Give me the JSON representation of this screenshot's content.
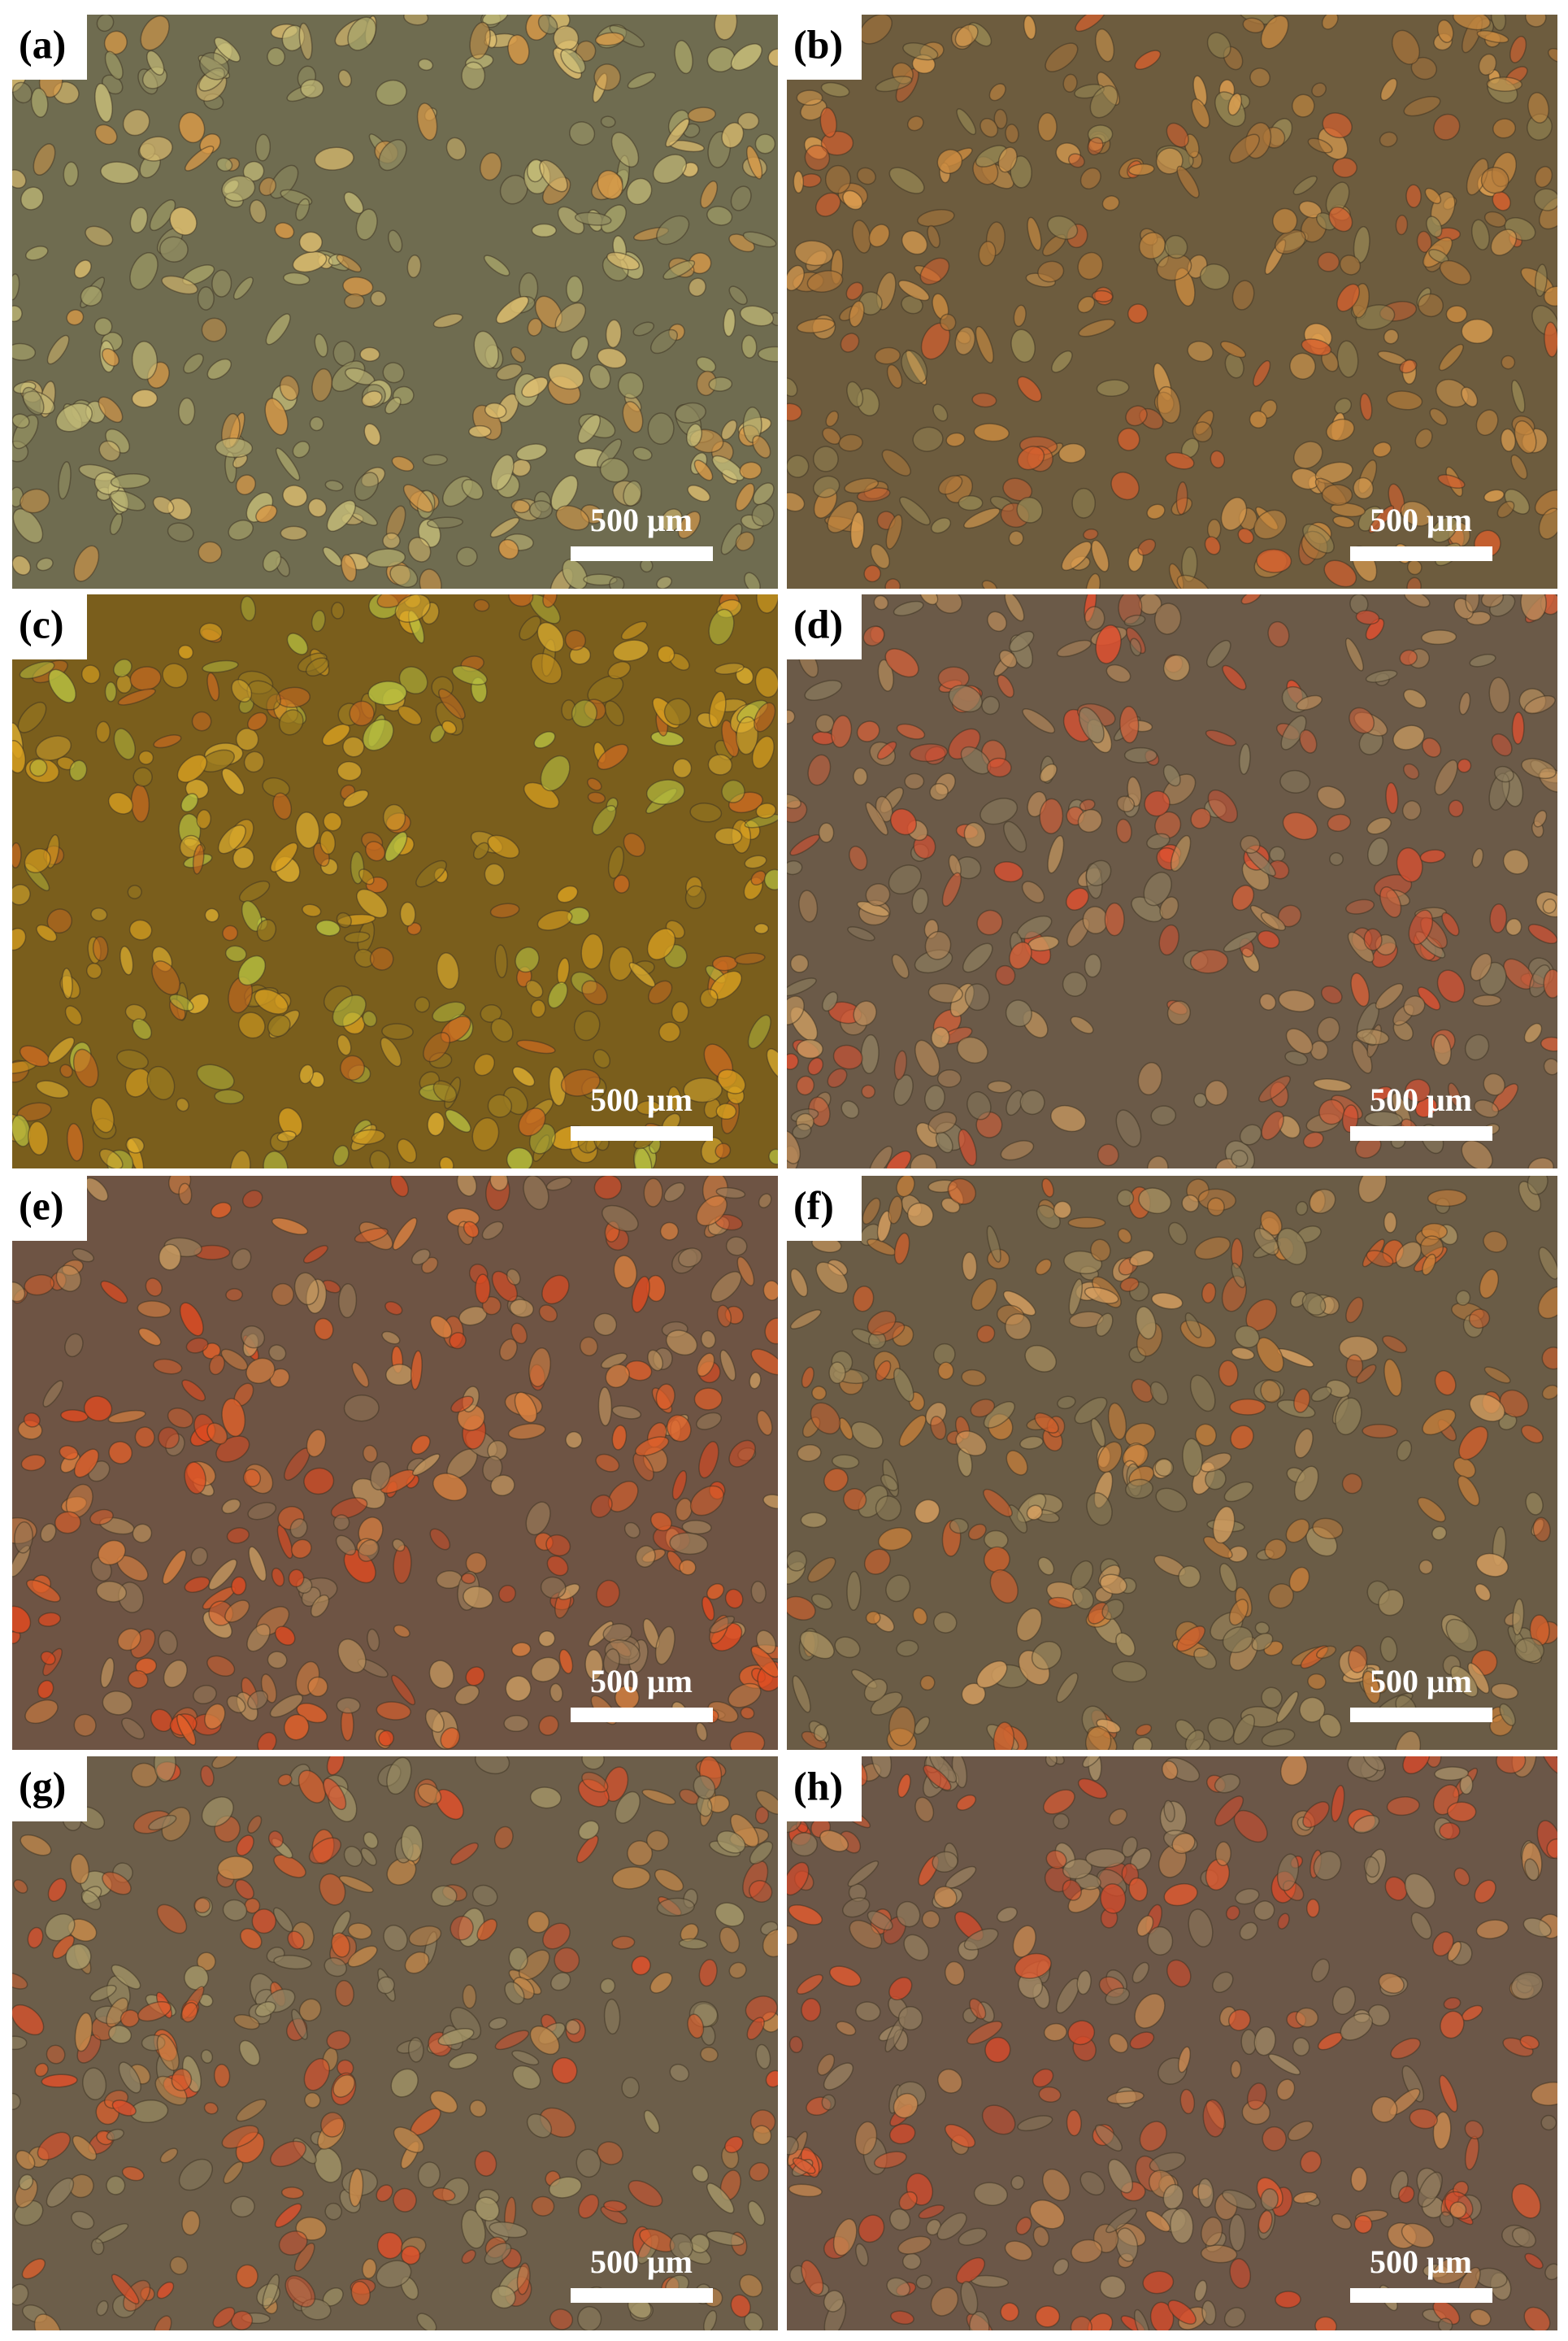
{
  "panels": [
    {
      "label": "(a)",
      "scale_bar": "500 μm"
    },
    {
      "label": "(b)",
      "scale_bar": "500 μm"
    },
    {
      "label": "(c)",
      "scale_bar": "500 μm"
    },
    {
      "label": "(d)",
      "scale_bar": "500 μm"
    },
    {
      "label": "(e)",
      "scale_bar": "500 μm"
    },
    {
      "label": "(f)",
      "scale_bar": "500 μm"
    },
    {
      "label": "(g)",
      "scale_bar": "500 μm"
    },
    {
      "label": "(h)",
      "scale_bar": "500 μm"
    }
  ]
}
